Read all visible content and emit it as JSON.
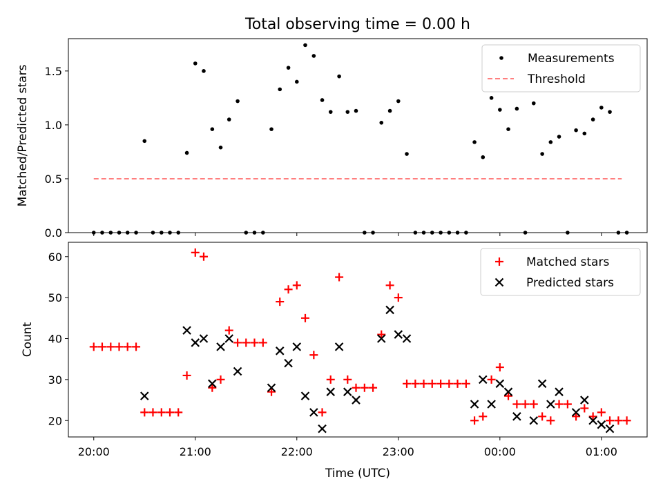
{
  "chart_data": {
    "title": "Total observing time = 0.00 h",
    "xlabel": "Time (UTC)",
    "x_tick_labels": [
      "20:00",
      "21:00",
      "22:00",
      "23:00",
      "00:00",
      "01:00"
    ],
    "x_range": [
      -0.25,
      5.45
    ],
    "panels": [
      {
        "type": "scatter",
        "ylabel": "Matched/Predicted stars",
        "ylim": [
          0,
          1.8
        ],
        "y_ticks": [
          0.0,
          0.5,
          1.0,
          1.5
        ],
        "y_tick_labels": [
          "0.0",
          "0.5",
          "1.0",
          "1.5"
        ],
        "legend": "top-right",
        "series": [
          {
            "name": "Measurements",
            "marker": "dot",
            "color": "#000000",
            "points": [
              [
                0.0,
                0
              ],
              [
                0.083,
                0
              ],
              [
                0.167,
                0
              ],
              [
                0.25,
                0
              ],
              [
                0.333,
                0
              ],
              [
                0.417,
                0
              ],
              [
                0.5,
                0.85
              ],
              [
                0.583,
                0
              ],
              [
                0.667,
                0
              ],
              [
                0.75,
                0
              ],
              [
                0.833,
                0
              ],
              [
                0.917,
                0.74
              ],
              [
                1.0,
                1.57
              ],
              [
                1.083,
                1.5
              ],
              [
                1.167,
                0.96
              ],
              [
                1.25,
                0.79
              ],
              [
                1.333,
                1.05
              ],
              [
                1.417,
                1.22
              ],
              [
                1.5,
                0
              ],
              [
                1.583,
                0
              ],
              [
                1.667,
                0
              ],
              [
                1.75,
                0.96
              ],
              [
                1.833,
                1.33
              ],
              [
                1.917,
                1.53
              ],
              [
                2.0,
                1.4
              ],
              [
                2.083,
                1.74
              ],
              [
                2.167,
                1.64
              ],
              [
                2.25,
                1.23
              ],
              [
                2.333,
                1.12
              ],
              [
                2.417,
                1.45
              ],
              [
                2.5,
                1.12
              ],
              [
                2.583,
                1.13
              ],
              [
                2.667,
                0
              ],
              [
                2.75,
                0
              ],
              [
                2.833,
                1.02
              ],
              [
                2.917,
                1.13
              ],
              [
                3.0,
                1.22
              ],
              [
                3.083,
                0.73
              ],
              [
                3.167,
                0
              ],
              [
                3.25,
                0
              ],
              [
                3.333,
                0
              ],
              [
                3.417,
                0
              ],
              [
                3.5,
                0
              ],
              [
                3.583,
                0
              ],
              [
                3.667,
                0
              ],
              [
                3.75,
                0.84
              ],
              [
                3.833,
                0.7
              ],
              [
                3.917,
                1.25
              ],
              [
                4.0,
                1.14
              ],
              [
                4.083,
                0.96
              ],
              [
                4.167,
                1.15
              ],
              [
                4.25,
                0
              ],
              [
                4.333,
                1.2
              ],
              [
                4.417,
                0.73
              ],
              [
                4.5,
                0.84
              ],
              [
                4.583,
                0.89
              ],
              [
                4.667,
                0
              ],
              [
                4.75,
                0.95
              ],
              [
                4.833,
                0.92
              ],
              [
                4.917,
                1.05
              ],
              [
                5.0,
                1.16
              ],
              [
                5.083,
                1.12
              ],
              [
                5.167,
                0
              ],
              [
                5.25,
                0
              ]
            ]
          },
          {
            "name": "Threshold",
            "type": "line",
            "dash": "dashed",
            "color": "#ff7f7f",
            "x": [
              0.0,
              5.2
            ],
            "y": [
              0.5,
              0.5
            ]
          }
        ]
      },
      {
        "type": "scatter",
        "ylabel": "Count",
        "ylim": [
          16,
          63.5
        ],
        "y_ticks": [
          20,
          30,
          40,
          50,
          60
        ],
        "y_tick_labels": [
          "20",
          "30",
          "40",
          "50",
          "60"
        ],
        "legend": "top-right",
        "series": [
          {
            "name": "Matched stars",
            "marker": "plus",
            "color": "#ff0000",
            "points": [
              [
                0.0,
                38
              ],
              [
                0.083,
                38
              ],
              [
                0.167,
                38
              ],
              [
                0.25,
                38
              ],
              [
                0.333,
                38
              ],
              [
                0.417,
                38
              ],
              [
                0.5,
                22
              ],
              [
                0.583,
                22
              ],
              [
                0.667,
                22
              ],
              [
                0.75,
                22
              ],
              [
                0.833,
                22
              ],
              [
                0.917,
                31
              ],
              [
                1.0,
                61
              ],
              [
                1.083,
                60
              ],
              [
                1.167,
                28
              ],
              [
                1.25,
                30
              ],
              [
                1.333,
                42
              ],
              [
                1.417,
                39
              ],
              [
                1.5,
                39
              ],
              [
                1.583,
                39
              ],
              [
                1.667,
                39
              ],
              [
                1.75,
                27
              ],
              [
                1.833,
                49
              ],
              [
                1.917,
                52
              ],
              [
                2.0,
                53
              ],
              [
                2.083,
                45
              ],
              [
                2.167,
                36
              ],
              [
                2.25,
                22
              ],
              [
                2.333,
                30
              ],
              [
                2.417,
                55
              ],
              [
                2.5,
                30
              ],
              [
                2.583,
                28
              ],
              [
                2.667,
                28
              ],
              [
                2.75,
                28
              ],
              [
                2.833,
                41
              ],
              [
                2.917,
                53
              ],
              [
                3.0,
                50
              ],
              [
                3.083,
                29
              ],
              [
                3.167,
                29
              ],
              [
                3.25,
                29
              ],
              [
                3.333,
                29
              ],
              [
                3.417,
                29
              ],
              [
                3.5,
                29
              ],
              [
                3.583,
                29
              ],
              [
                3.667,
                29
              ],
              [
                3.75,
                20
              ],
              [
                3.833,
                21
              ],
              [
                3.917,
                30
              ],
              [
                4.0,
                33
              ],
              [
                4.083,
                26
              ],
              [
                4.167,
                24
              ],
              [
                4.25,
                24
              ],
              [
                4.333,
                24
              ],
              [
                4.417,
                21
              ],
              [
                4.5,
                20
              ],
              [
                4.583,
                24
              ],
              [
                4.667,
                24
              ],
              [
                4.75,
                21
              ],
              [
                4.833,
                23
              ],
              [
                4.917,
                21
              ],
              [
                5.0,
                22
              ],
              [
                5.083,
                20
              ],
              [
                5.167,
                20
              ],
              [
                5.25,
                20
              ]
            ]
          },
          {
            "name": "Predicted stars",
            "marker": "x",
            "color": "#000000",
            "points": [
              [
                0.5,
                26
              ],
              [
                0.917,
                42
              ],
              [
                1.0,
                39
              ],
              [
                1.083,
                40
              ],
              [
                1.167,
                29
              ],
              [
                1.25,
                38
              ],
              [
                1.333,
                40
              ],
              [
                1.417,
                32
              ],
              [
                1.75,
                28
              ],
              [
                1.833,
                37
              ],
              [
                1.917,
                34
              ],
              [
                2.0,
                38
              ],
              [
                2.083,
                26
              ],
              [
                2.167,
                22
              ],
              [
                2.25,
                18
              ],
              [
                2.333,
                27
              ],
              [
                2.417,
                38
              ],
              [
                2.5,
                27
              ],
              [
                2.583,
                25
              ],
              [
                2.833,
                40
              ],
              [
                2.917,
                47
              ],
              [
                3.0,
                41
              ],
              [
                3.083,
                40
              ],
              [
                3.75,
                24
              ],
              [
                3.833,
                30
              ],
              [
                3.917,
                24
              ],
              [
                4.0,
                29
              ],
              [
                4.083,
                27
              ],
              [
                4.167,
                21
              ],
              [
                4.333,
                20
              ],
              [
                4.417,
                29
              ],
              [
                4.5,
                24
              ],
              [
                4.583,
                27
              ],
              [
                4.75,
                22
              ],
              [
                4.833,
                25
              ],
              [
                4.917,
                20
              ],
              [
                5.0,
                19
              ],
              [
                5.083,
                18
              ]
            ]
          }
        ]
      }
    ]
  }
}
